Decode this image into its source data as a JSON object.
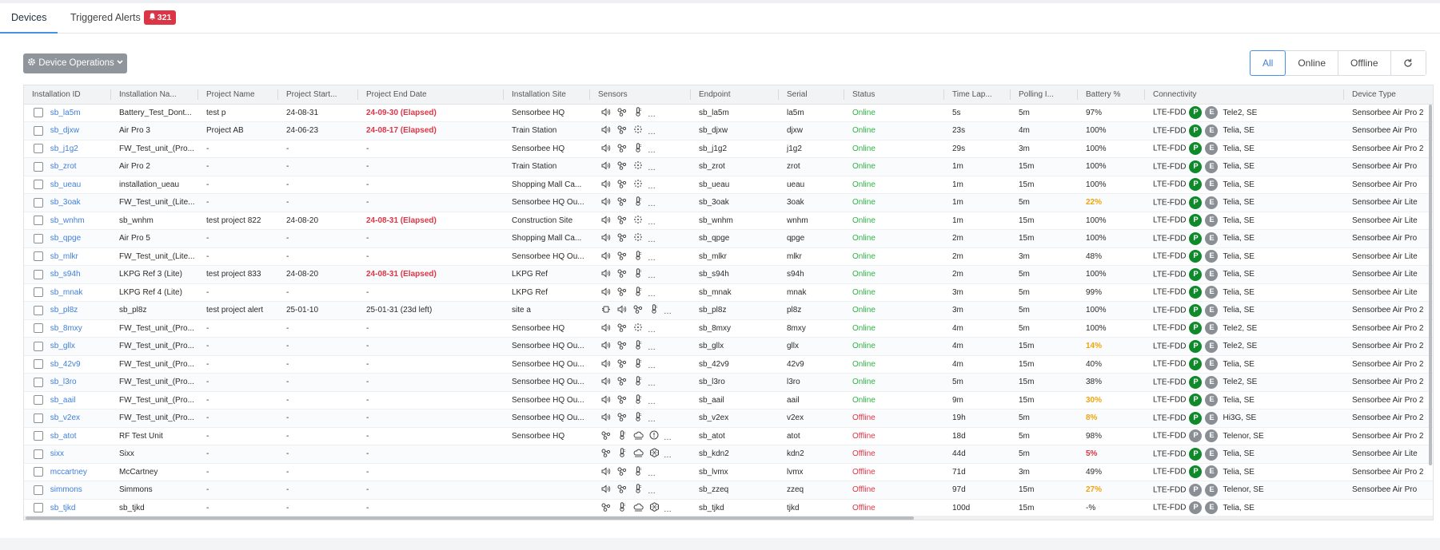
{
  "tabs": [
    {
      "label": "Devices",
      "active": true
    },
    {
      "label": "Triggered Alerts",
      "badge": "321",
      "badge_icon": "bell-icon"
    }
  ],
  "toolbar": {
    "operations_label": "Device Operations",
    "operations_icon": "gear-icon",
    "chevron_icon": "chevron-down-icon"
  },
  "filters": {
    "items": [
      "All",
      "Online",
      "Offline"
    ],
    "selected": "All",
    "refresh_icon": "refresh-icon"
  },
  "columns": [
    "Installation ID",
    "Installation Na...",
    "Project Name",
    "Project Start...",
    "Project End Date",
    "Installation Site",
    "Sensors",
    "Endpoint",
    "Serial",
    "Status",
    "Time Lap...",
    "Polling I...",
    "Battery %",
    "Connectivity",
    "Device Type"
  ],
  "colors": {
    "accent": "#3f7fd9",
    "online": "#2fb344",
    "offline": "#dc3545",
    "warning": "#f0a30a",
    "badge": "#dc3545",
    "p_pill": "#0f8a2b"
  },
  "rows": [
    {
      "id": "sb_la5m",
      "name": "Battery_Test_Dont...",
      "project": "test p",
      "start": "24-08-31",
      "end": "24-09-30 (Elapsed)",
      "end_state": "elapsed",
      "site": "Sensorbee HQ",
      "sensors": [
        "speaker",
        "molecule",
        "thermo"
      ],
      "endpoint": "sb_la5m",
      "serial": "la5m",
      "status": "Online",
      "lapse": "5s",
      "polling": "5m",
      "battery": "97%",
      "battery_state": "ok",
      "net": "LTE-FDD",
      "p": "P",
      "e": "E",
      "op": "Tele2, SE",
      "type": "Sensorbee Air Pro 2"
    },
    {
      "id": "sb_djxw",
      "name": "Air Pro 3",
      "project": "Project AB",
      "start": "24-06-23",
      "end": "24-08-17 (Elapsed)",
      "end_state": "elapsed",
      "site": "Train Station",
      "sensors": [
        "speaker",
        "molecule",
        "dust"
      ],
      "endpoint": "sb_djxw",
      "serial": "djxw",
      "status": "Online",
      "lapse": "23s",
      "polling": "4m",
      "battery": "100%",
      "battery_state": "ok",
      "net": "LTE-FDD",
      "p": "P",
      "e": "E",
      "op": "Telia, SE",
      "type": "Sensorbee Air Pro"
    },
    {
      "id": "sb_j1g2",
      "name": "FW_Test_unit_(Pro...",
      "project": "-",
      "start": "-",
      "end": "-",
      "end_state": "none",
      "site": "Sensorbee HQ",
      "sensors": [
        "speaker",
        "molecule",
        "thermo"
      ],
      "endpoint": "sb_j1g2",
      "serial": "j1g2",
      "status": "Online",
      "lapse": "29s",
      "polling": "3m",
      "battery": "100%",
      "battery_state": "ok",
      "net": "LTE-FDD",
      "p": "P",
      "e": "E",
      "op": "Telia, SE",
      "type": "Sensorbee Air Pro 2"
    },
    {
      "id": "sb_zrot",
      "name": "Air Pro 2",
      "project": "-",
      "start": "-",
      "end": "-",
      "end_state": "none",
      "site": "Train Station",
      "sensors": [
        "speaker",
        "molecule",
        "dust"
      ],
      "endpoint": "sb_zrot",
      "serial": "zrot",
      "status": "Online",
      "lapse": "1m",
      "polling": "15m",
      "battery": "100%",
      "battery_state": "ok",
      "net": "LTE-FDD",
      "p": "P",
      "e": "E",
      "op": "Telia, SE",
      "type": "Sensorbee Air Pro"
    },
    {
      "id": "sb_ueau",
      "name": "installation_ueau",
      "project": "-",
      "start": "-",
      "end": "-",
      "end_state": "none",
      "site": "Shopping Mall Ca...",
      "sensors": [
        "speaker",
        "molecule",
        "dust"
      ],
      "endpoint": "sb_ueau",
      "serial": "ueau",
      "status": "Online",
      "lapse": "1m",
      "polling": "15m",
      "battery": "100%",
      "battery_state": "ok",
      "net": "LTE-FDD",
      "p": "P",
      "e": "E",
      "op": "Telia, SE",
      "type": "Sensorbee Air Pro"
    },
    {
      "id": "sb_3oak",
      "name": "FW_Test_unit_(Lite...",
      "project": "-",
      "start": "-",
      "end": "-",
      "end_state": "none",
      "site": "Sensorbee HQ Ou...",
      "sensors": [
        "speaker",
        "molecule",
        "thermo"
      ],
      "endpoint": "sb_3oak",
      "serial": "3oak",
      "status": "Online",
      "lapse": "1m",
      "polling": "5m",
      "battery": "22%",
      "battery_state": "low",
      "net": "LTE-FDD",
      "p": "P",
      "e": "E",
      "op": "Telia, SE",
      "type": "Sensorbee Air Lite"
    },
    {
      "id": "sb_wnhm",
      "name": "sb_wnhm",
      "project": "test project 822",
      "start": "24-08-20",
      "end": "24-08-31 (Elapsed)",
      "end_state": "elapsed",
      "site": "Construction Site",
      "sensors": [
        "speaker",
        "molecule",
        "dust"
      ],
      "endpoint": "sb_wnhm",
      "serial": "wnhm",
      "status": "Online",
      "lapse": "1m",
      "polling": "15m",
      "battery": "100%",
      "battery_state": "ok",
      "net": "LTE-FDD",
      "p": "P",
      "e": "E",
      "op": "Telia, SE",
      "type": "Sensorbee Air Lite"
    },
    {
      "id": "sb_qpge",
      "name": "Air Pro 5",
      "project": "-",
      "start": "-",
      "end": "-",
      "end_state": "none",
      "site": "Shopping Mall Ca...",
      "sensors": [
        "speaker",
        "molecule",
        "dust"
      ],
      "endpoint": "sb_qpge",
      "serial": "qpge",
      "status": "Online",
      "lapse": "2m",
      "polling": "15m",
      "battery": "100%",
      "battery_state": "ok",
      "net": "LTE-FDD",
      "p": "P",
      "e": "E",
      "op": "Telia, SE",
      "type": "Sensorbee Air Pro"
    },
    {
      "id": "sb_mlkr",
      "name": "FW_Test_unit_(Lite...",
      "project": "-",
      "start": "-",
      "end": "-",
      "end_state": "none",
      "site": "Sensorbee HQ Ou...",
      "sensors": [
        "speaker",
        "molecule",
        "thermo"
      ],
      "endpoint": "sb_mlkr",
      "serial": "mlkr",
      "status": "Online",
      "lapse": "2m",
      "polling": "3m",
      "battery": "48%",
      "battery_state": "ok",
      "net": "LTE-FDD",
      "p": "P",
      "e": "E",
      "op": "Telia, SE",
      "type": "Sensorbee Air Lite"
    },
    {
      "id": "sb_s94h",
      "name": "LKPG Ref 3 (Lite)",
      "project": "test project 833",
      "start": "24-08-20",
      "end": "24-08-31 (Elapsed)",
      "end_state": "elapsed",
      "site": "LKPG Ref",
      "sensors": [
        "speaker",
        "molecule",
        "thermo"
      ],
      "endpoint": "sb_s94h",
      "serial": "s94h",
      "status": "Online",
      "lapse": "2m",
      "polling": "5m",
      "battery": "100%",
      "battery_state": "ok",
      "net": "LTE-FDD",
      "p": "P",
      "e": "E",
      "op": "Telia, SE",
      "type": "Sensorbee Air Lite"
    },
    {
      "id": "sb_mnak",
      "name": "LKPG Ref 4 (Lite)",
      "project": "-",
      "start": "-",
      "end": "-",
      "end_state": "none",
      "site": "LKPG Ref",
      "sensors": [
        "speaker",
        "molecule",
        "thermo"
      ],
      "endpoint": "sb_mnak",
      "serial": "mnak",
      "status": "Online",
      "lapse": "3m",
      "polling": "5m",
      "battery": "99%",
      "battery_state": "ok",
      "net": "LTE-FDD",
      "p": "P",
      "e": "E",
      "op": "Telia, SE",
      "type": "Sensorbee Air Lite"
    },
    {
      "id": "sb_pl8z",
      "name": "sb_pl8z",
      "project": "test project alert",
      "start": "25-01-10",
      "end": "25-01-31 (23d left)",
      "end_state": "active",
      "site": "site a",
      "sensors": [
        "plug",
        "speaker",
        "molecule",
        "thermo"
      ],
      "endpoint": "sb_pl8z",
      "serial": "pl8z",
      "status": "Online",
      "lapse": "3m",
      "polling": "5m",
      "battery": "100%",
      "battery_state": "ok",
      "net": "LTE-FDD",
      "p": "P",
      "e": "E",
      "op": "Telia, SE",
      "type": "Sensorbee Air Pro 2"
    },
    {
      "id": "sb_8mxy",
      "name": "FW_Test_unit_(Pro...",
      "project": "-",
      "start": "-",
      "end": "-",
      "end_state": "none",
      "site": "Sensorbee HQ",
      "sensors": [
        "speaker",
        "molecule",
        "dust"
      ],
      "endpoint": "sb_8mxy",
      "serial": "8mxy",
      "status": "Online",
      "lapse": "4m",
      "polling": "5m",
      "battery": "100%",
      "battery_state": "ok",
      "net": "LTE-FDD",
      "p": "P",
      "e": "E",
      "op": "Tele2, SE",
      "type": "Sensorbee Air Pro 2"
    },
    {
      "id": "sb_gllx",
      "name": "FW_Test_unit_(Pro...",
      "project": "-",
      "start": "-",
      "end": "-",
      "end_state": "none",
      "site": "Sensorbee HQ Ou...",
      "sensors": [
        "speaker",
        "molecule",
        "thermo"
      ],
      "endpoint": "sb_gllx",
      "serial": "gllx",
      "status": "Online",
      "lapse": "4m",
      "polling": "15m",
      "battery": "14%",
      "battery_state": "low",
      "net": "LTE-FDD",
      "p": "P",
      "e": "E",
      "op": "Tele2, SE",
      "type": "Sensorbee Air Pro 2"
    },
    {
      "id": "sb_42v9",
      "name": "FW_Test_unit_(Pro...",
      "project": "-",
      "start": "-",
      "end": "-",
      "end_state": "none",
      "site": "Sensorbee HQ Ou...",
      "sensors": [
        "speaker",
        "molecule",
        "thermo"
      ],
      "endpoint": "sb_42v9",
      "serial": "42v9",
      "status": "Online",
      "lapse": "4m",
      "polling": "15m",
      "battery": "40%",
      "battery_state": "ok",
      "net": "LTE-FDD",
      "p": "P",
      "e": "E",
      "op": "Telia, SE",
      "type": "Sensorbee Air Pro 2"
    },
    {
      "id": "sb_l3ro",
      "name": "FW_Test_unit_(Pro...",
      "project": "-",
      "start": "-",
      "end": "-",
      "end_state": "none",
      "site": "Sensorbee HQ Ou...",
      "sensors": [
        "speaker",
        "molecule",
        "thermo"
      ],
      "endpoint": "sb_l3ro",
      "serial": "l3ro",
      "status": "Online",
      "lapse": "5m",
      "polling": "15m",
      "battery": "38%",
      "battery_state": "ok",
      "net": "LTE-FDD",
      "p": "P",
      "e": "E",
      "op": "Tele2, SE",
      "type": "Sensorbee Air Pro 2"
    },
    {
      "id": "sb_aail",
      "name": "FW_Test_unit_(Pro...",
      "project": "-",
      "start": "-",
      "end": "-",
      "end_state": "none",
      "site": "Sensorbee HQ Ou...",
      "sensors": [
        "speaker",
        "molecule",
        "thermo"
      ],
      "endpoint": "sb_aail",
      "serial": "aail",
      "status": "Online",
      "lapse": "9m",
      "polling": "15m",
      "battery": "30%",
      "battery_state": "low",
      "net": "LTE-FDD",
      "p": "P",
      "e": "E",
      "op": "Telia, SE",
      "type": "Sensorbee Air Pro 2"
    },
    {
      "id": "sb_v2ex",
      "name": "FW_Test_unit_(Pro...",
      "project": "-",
      "start": "-",
      "end": "-",
      "end_state": "none",
      "site": "Sensorbee HQ Ou...",
      "sensors": [
        "speaker",
        "molecule",
        "thermo"
      ],
      "endpoint": "sb_v2ex",
      "serial": "v2ex",
      "status": "Offline",
      "lapse": "19h",
      "polling": "5m",
      "battery": "8%",
      "battery_state": "low",
      "net": "LTE-FDD",
      "p": "P",
      "e": "E",
      "op": "Hi3G, SE",
      "type": "Sensorbee Air Pro 2"
    },
    {
      "id": "sb_atot",
      "name": "RF Test Unit",
      "project": "-",
      "start": "-",
      "end": "-",
      "end_state": "none",
      "site": "Sensorbee HQ",
      "sensors": [
        "molecule",
        "thermo",
        "cloud",
        "gauge"
      ],
      "endpoint": "sb_atot",
      "serial": "atot",
      "status": "Offline",
      "lapse": "18d",
      "polling": "5m",
      "battery": "98%",
      "battery_state": "ok",
      "net": "LTE-FDD",
      "p": "P",
      "e": "E",
      "op": "Telenor, SE",
      "type": "Sensorbee Air Pro 2",
      "p_grey": true
    },
    {
      "id": "sixx",
      "name": "Sixx",
      "project": "-",
      "start": "-",
      "end": "-",
      "end_state": "none",
      "site": "",
      "sensors": [
        "molecule",
        "thermo",
        "cloud",
        "hex"
      ],
      "endpoint": "sb_kdn2",
      "serial": "kdn2",
      "status": "Offline",
      "lapse": "44d",
      "polling": "5m",
      "battery": "5%",
      "battery_state": "crit",
      "net": "LTE-FDD",
      "p": "P",
      "e": "E",
      "op": "Telia, SE",
      "type": "Sensorbee Air Lite"
    },
    {
      "id": "mccartney",
      "name": "McCartney",
      "project": "-",
      "start": "-",
      "end": "-",
      "end_state": "none",
      "site": "",
      "sensors": [
        "speaker",
        "molecule",
        "thermo"
      ],
      "endpoint": "sb_lvmx",
      "serial": "lvmx",
      "status": "Offline",
      "lapse": "71d",
      "polling": "3m",
      "battery": "49%",
      "battery_state": "ok",
      "net": "LTE-FDD",
      "p": "P",
      "e": "E",
      "op": "Telia, SE",
      "type": "Sensorbee Air Pro 2"
    },
    {
      "id": "simmons",
      "name": "Simmons",
      "project": "-",
      "start": "-",
      "end": "-",
      "end_state": "none",
      "site": "",
      "sensors": [
        "speaker",
        "molecule",
        "thermo"
      ],
      "endpoint": "sb_zzeq",
      "serial": "zzeq",
      "status": "Offline",
      "lapse": "97d",
      "polling": "15m",
      "battery": "27%",
      "battery_state": "low",
      "net": "LTE-FDD",
      "p": "P",
      "e": "E",
      "op": "Telenor, SE",
      "type": "Sensorbee Air Pro",
      "p_grey": true
    },
    {
      "id": "sb_tjkd",
      "name": "sb_tjkd",
      "project": "-",
      "start": "-",
      "end": "-",
      "end_state": "none",
      "site": "",
      "sensors": [
        "molecule",
        "thermo",
        "cloud",
        "hex"
      ],
      "endpoint": "sb_tjkd",
      "serial": "tjkd",
      "status": "Offline",
      "lapse": "100d",
      "polling": "15m",
      "battery": "-%",
      "battery_state": "ok",
      "net": "LTE-FDD",
      "p": "P",
      "e": "E",
      "op": "Telia, SE",
      "type": "",
      "p_grey": true
    }
  ]
}
